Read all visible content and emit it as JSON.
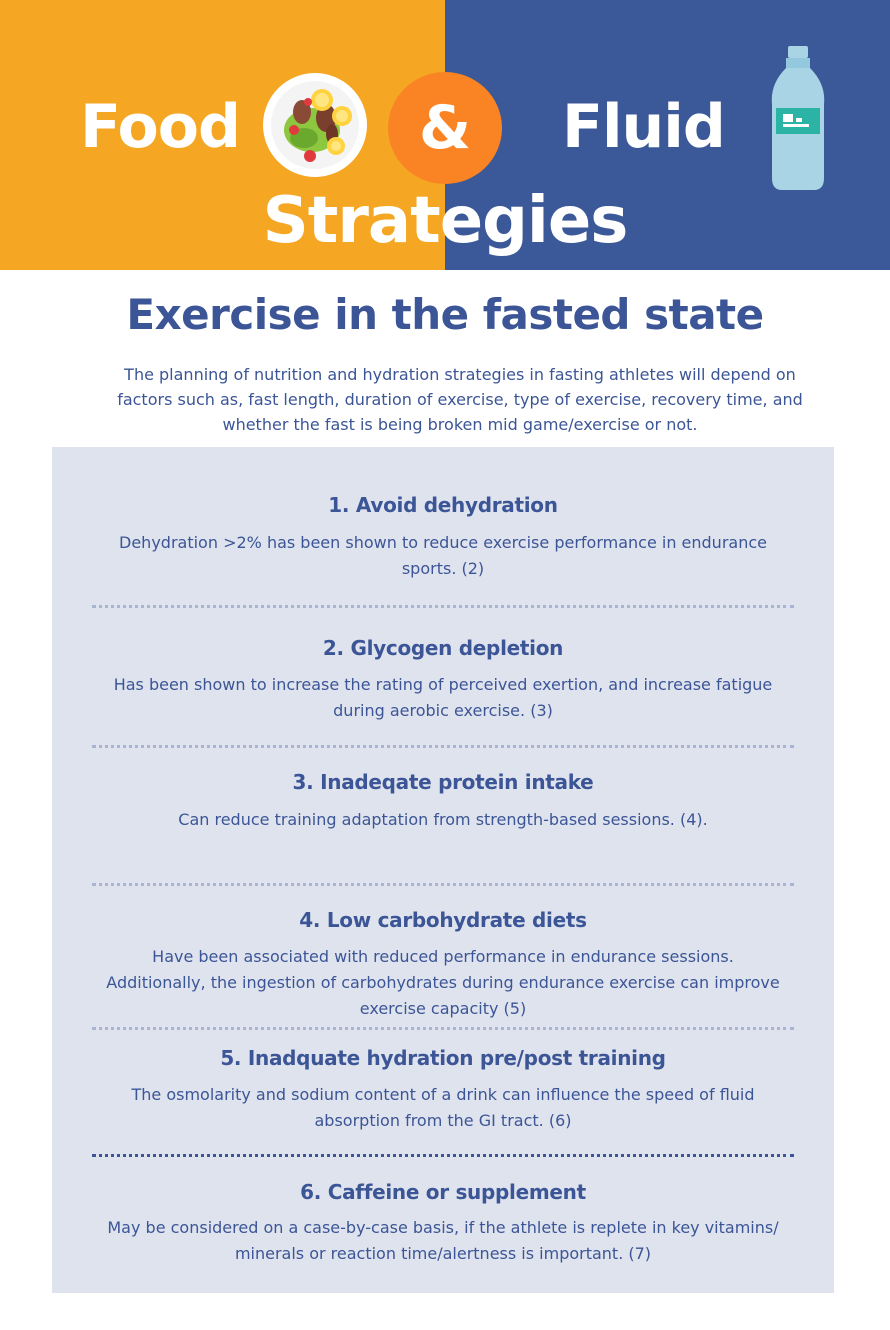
{
  "header": {
    "word_left": "Food",
    "ampersand": "&",
    "word_right": "Fluid",
    "subtitle": "Strategies",
    "colors": {
      "left": "#F5A623",
      "right": "#3B5998",
      "accent": "#FA8424",
      "text": "#3B5596",
      "panel": "#DFE3EE"
    },
    "icons": [
      "salad-plate-icon",
      "water-bottle-icon"
    ]
  },
  "main": {
    "title": "Exercise in the fasted state",
    "intro": "The planning of nutrition and hydration strategies in fasting athletes will depend on factors such as, fast length, duration of exercise, type of exercise, recovery time, and whether the fast is being broken mid game/exercise or not.",
    "items": [
      {
        "title": "1. Avoid dehydration",
        "text": "Dehydration >2% has been shown to reduce exercise performance in endurance sports. (2)"
      },
      {
        "title": "2. Glycogen depletion",
        "text": "Has been shown to increase the rating of perceived exertion, and increase fatigue during aerobic exercise. (3)"
      },
      {
        "title": "3. Inadeqate protein intake",
        "text": "Can reduce training adaptation from strength-based sessions. (4)."
      },
      {
        "title": "4. Low carbohydrate diets",
        "text": "Have been associated with reduced performance in endurance sessions. Additionally, the ingestion of carbohydrates during endurance exercise can improve exercise capacity (5)"
      },
      {
        "title": "5. Inadquate hydration pre/post training",
        "text": "The osmolarity and sodium content of a drink can influence the speed of fluid absorption from the GI tract. (6)"
      },
      {
        "title": "6. Caffeine or supplement",
        "text": "May be considered on a case-by-case basis, if the athlete is replete in key vitamins/ minerals or reaction time/alertness is important. (7)"
      }
    ]
  }
}
